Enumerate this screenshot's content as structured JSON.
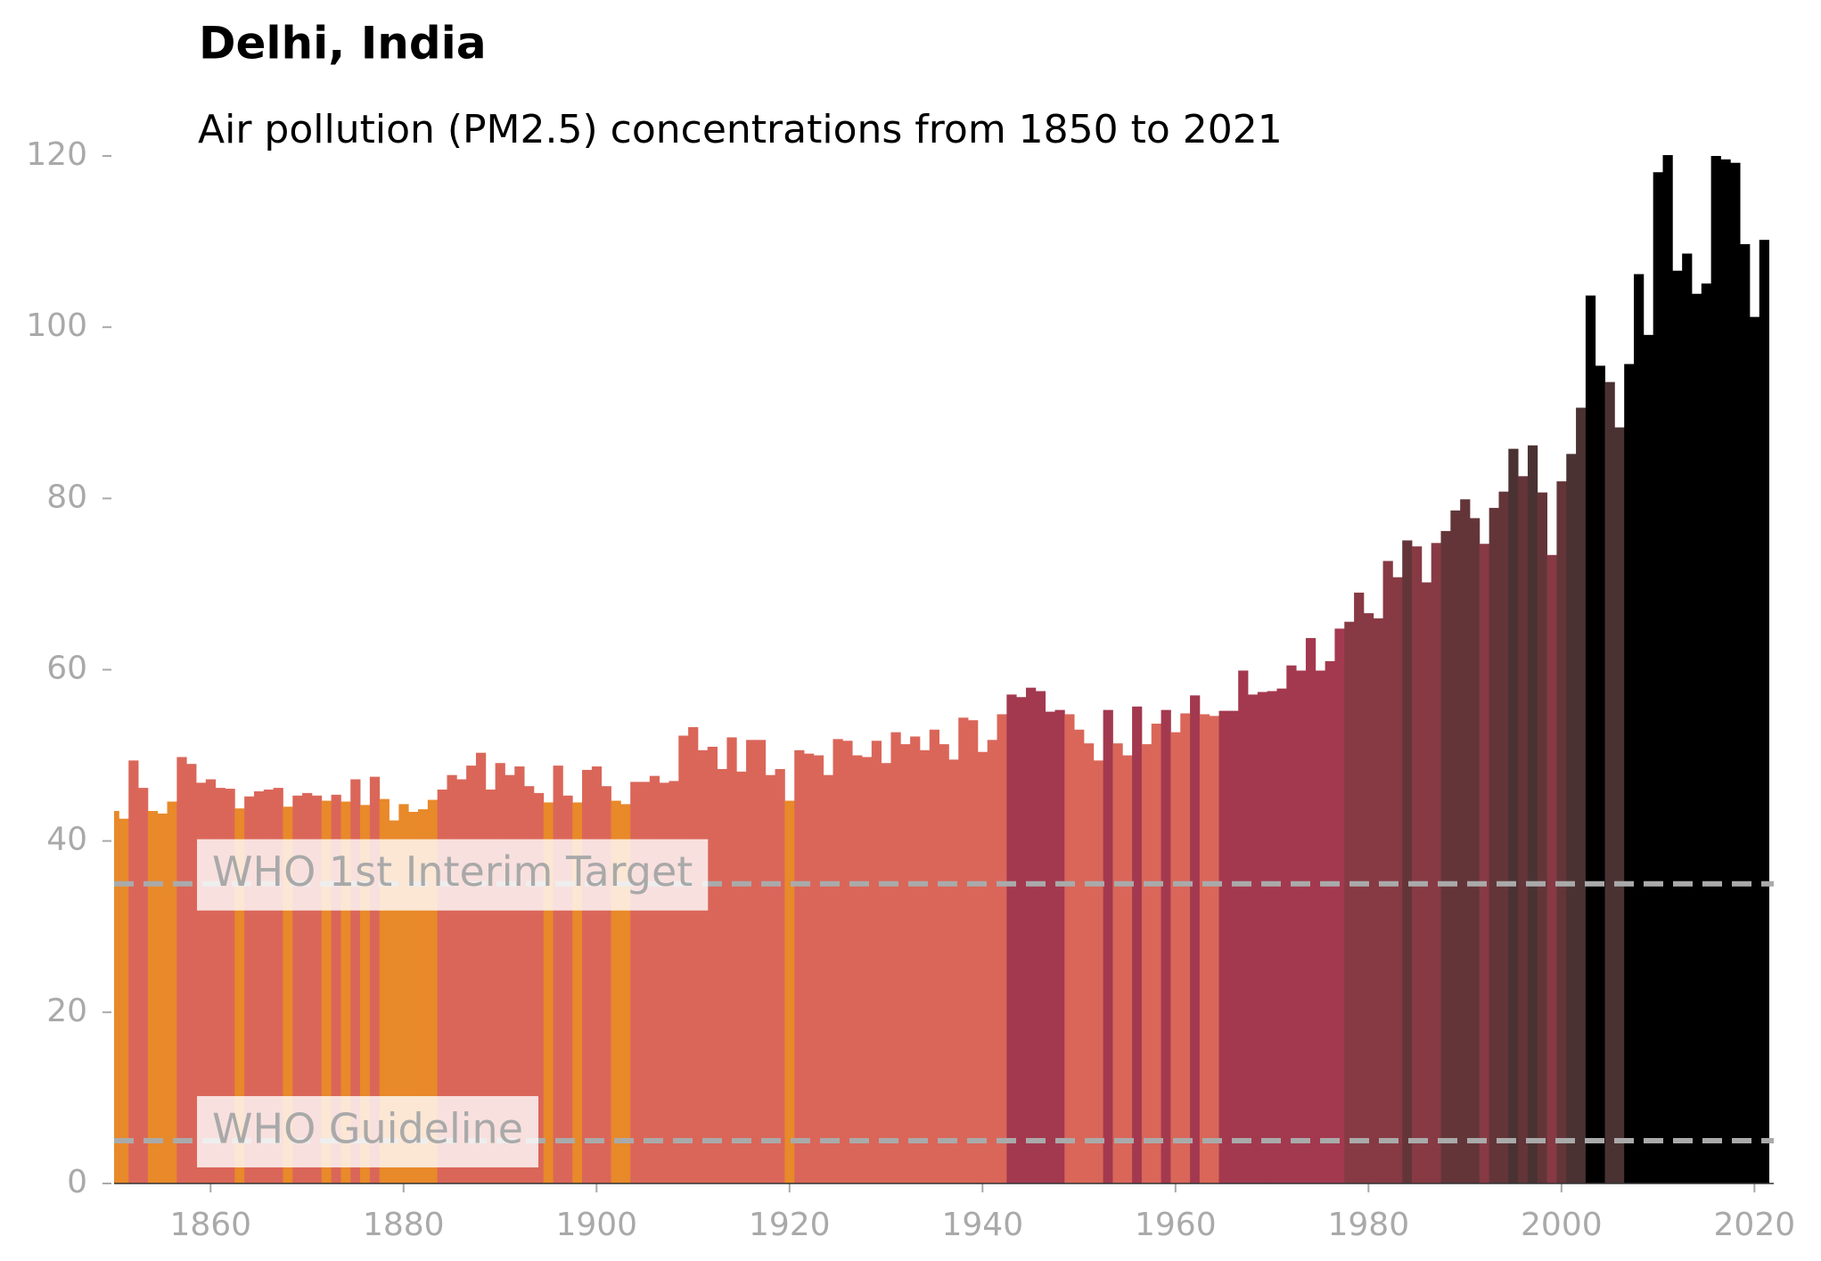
{
  "chart_data": {
    "type": "bar",
    "title": "Delhi, India",
    "subtitle": "Air pollution (PM2.5) concentrations from 1850 to 2021",
    "x": [
      1850,
      1851,
      1852,
      1853,
      1854,
      1855,
      1856,
      1857,
      1858,
      1859,
      1860,
      1861,
      1862,
      1863,
      1864,
      1865,
      1866,
      1867,
      1868,
      1869,
      1870,
      1871,
      1872,
      1873,
      1874,
      1875,
      1876,
      1877,
      1878,
      1879,
      1880,
      1881,
      1882,
      1883,
      1884,
      1885,
      1886,
      1887,
      1888,
      1889,
      1890,
      1891,
      1892,
      1893,
      1894,
      1895,
      1896,
      1897,
      1898,
      1899,
      1900,
      1901,
      1902,
      1903,
      1904,
      1905,
      1906,
      1907,
      1908,
      1909,
      1910,
      1911,
      1912,
      1913,
      1914,
      1915,
      1916,
      1917,
      1918,
      1919,
      1920,
      1921,
      1922,
      1923,
      1924,
      1925,
      1926,
      1927,
      1928,
      1929,
      1930,
      1931,
      1932,
      1933,
      1934,
      1935,
      1936,
      1937,
      1938,
      1939,
      1940,
      1941,
      1942,
      1943,
      1944,
      1945,
      1946,
      1947,
      1948,
      1949,
      1950,
      1951,
      1952,
      1953,
      1954,
      1955,
      1956,
      1957,
      1958,
      1959,
      1960,
      1961,
      1962,
      1963,
      1964,
      1965,
      1966,
      1967,
      1968,
      1969,
      1970,
      1971,
      1972,
      1973,
      1974,
      1975,
      1976,
      1977,
      1978,
      1979,
      1980,
      1981,
      1982,
      1983,
      1984,
      1985,
      1986,
      1987,
      1988,
      1989,
      1990,
      1991,
      1992,
      1993,
      1994,
      1995,
      1996,
      1997,
      1998,
      1999,
      2000,
      2001,
      2002,
      2003,
      2004,
      2005,
      2006,
      2007,
      2008,
      2009,
      2010,
      2011,
      2012,
      2013,
      2014,
      2015,
      2016,
      2017,
      2018,
      2019,
      2020,
      2021
    ],
    "values": [
      43.5,
      42.6,
      49.4,
      46.2,
      43.5,
      43.2,
      44.6,
      49.8,
      49,
      46.8,
      47.2,
      46.2,
      46.1,
      43.8,
      45.2,
      45.8,
      46,
      46.2,
      44,
      45.3,
      45.6,
      45.3,
      44.7,
      45.4,
      44.6,
      47.2,
      44.2,
      47.5,
      44.9,
      42.4,
      44.3,
      43.4,
      43.7,
      44.8,
      46,
      47.7,
      47.2,
      48.8,
      50.3,
      46,
      49.1,
      47.7,
      48.7,
      46.4,
      45.6,
      44.5,
      48.8,
      45.3,
      44.5,
      48.3,
      48.7,
      46.4,
      44.7,
      44.3,
      46.9,
      46.9,
      47.6,
      46.8,
      47,
      52.3,
      53.3,
      50.6,
      51,
      48.4,
      52.1,
      48.1,
      51.8,
      51.8,
      47.7,
      48.4,
      44.7,
      50.6,
      50.2,
      50,
      47.7,
      51.9,
      51.7,
      50,
      49.8,
      51.7,
      49.1,
      52.7,
      51.3,
      52.2,
      50.6,
      53,
      51.3,
      49.5,
      54.4,
      54.1,
      50.4,
      51.8,
      54.8,
      57.1,
      56.8,
      57.9,
      57.5,
      55.1,
      55.3,
      54.8,
      53,
      51.4,
      49.4,
      55.3,
      51.4,
      50,
      55.7,
      51.3,
      53.7,
      55.3,
      52.7,
      54.9,
      57,
      54.8,
      54.6,
      55.2,
      55.2,
      59.9,
      57.1,
      57.4,
      57.5,
      57.8,
      60.5,
      59.9,
      63.7,
      59.9,
      61,
      64.8,
      65.6,
      69,
      66.6,
      66,
      72.7,
      70.8,
      75.1,
      74.4,
      70.2,
      74.8,
      76.2,
      78.6,
      79.9,
      77.7,
      74.7,
      78.9,
      80.8,
      85.8,
      82.6,
      86.2,
      80.7,
      73.4,
      82,
      85.2,
      90.6,
      103.7,
      95.5,
      93.6,
      88.3,
      95.7,
      106.2,
      99.1,
      118.1,
      120.1,
      106.6,
      108.6,
      103.9,
      105.1,
      120,
      119.6,
      119.2,
      109.7,
      101.2,
      110.2
    ],
    "colors": [
      "#e8892a",
      "#e8892a",
      "#da6659",
      "#da6659",
      "#e8892a",
      "#e8892a",
      "#e8892a",
      "#da6659",
      "#da6659",
      "#da6659",
      "#da6659",
      "#da6659",
      "#da6659",
      "#e8892a",
      "#da6659",
      "#da6659",
      "#da6659",
      "#da6659",
      "#e8892a",
      "#da6659",
      "#da6659",
      "#da6659",
      "#e8892a",
      "#da6659",
      "#e8892a",
      "#da6659",
      "#e8892a",
      "#da6659",
      "#e8892a",
      "#e8892a",
      "#e8892a",
      "#e8892a",
      "#e8892a",
      "#e8892a",
      "#da6659",
      "#da6659",
      "#da6659",
      "#da6659",
      "#da6659",
      "#da6659",
      "#da6659",
      "#da6659",
      "#da6659",
      "#da6659",
      "#da6659",
      "#e8892a",
      "#da6659",
      "#da6659",
      "#e8892a",
      "#da6659",
      "#da6659",
      "#da6659",
      "#e8892a",
      "#e8892a",
      "#da6659",
      "#da6659",
      "#da6659",
      "#da6659",
      "#da6659",
      "#da6659",
      "#da6659",
      "#da6659",
      "#da6659",
      "#da6659",
      "#da6659",
      "#da6659",
      "#da6659",
      "#da6659",
      "#da6659",
      "#da6659",
      "#e8892a",
      "#da6659",
      "#da6659",
      "#da6659",
      "#da6659",
      "#da6659",
      "#da6659",
      "#da6659",
      "#da6659",
      "#da6659",
      "#da6659",
      "#da6659",
      "#da6659",
      "#da6659",
      "#da6659",
      "#da6659",
      "#da6659",
      "#da6659",
      "#da6659",
      "#da6659",
      "#da6659",
      "#da6659",
      "#da6659",
      "#a3394f",
      "#a3394f",
      "#a3394f",
      "#a3394f",
      "#a3394f",
      "#a3394f",
      "#da6659",
      "#da6659",
      "#da6659",
      "#da6659",
      "#a3394f",
      "#da6659",
      "#da6659",
      "#a3394f",
      "#da6659",
      "#da6659",
      "#a3394f",
      "#da6659",
      "#da6659",
      "#a3394f",
      "#da6659",
      "#da6659",
      "#a3394f",
      "#a3394f",
      "#a3394f",
      "#a3394f",
      "#a3394f",
      "#a3394f",
      "#a3394f",
      "#a3394f",
      "#a3394f",
      "#a3394f",
      "#a3394f",
      "#a3394f",
      "#a3394f",
      "#873a44",
      "#873a44",
      "#873a44",
      "#873a44",
      "#873a44",
      "#873a44",
      "#633539",
      "#873a44",
      "#873a44",
      "#873a44",
      "#633539",
      "#633539",
      "#633539",
      "#633539",
      "#873a44",
      "#633539",
      "#633539",
      "#4a3233",
      "#633539",
      "#4a3233",
      "#633539",
      "#873a44",
      "#633539",
      "#4a3233",
      "#4a3233",
      "#000000",
      "#000000",
      "#4a3233",
      "#4a3233",
      "#000000",
      "#000000",
      "#000000",
      "#000000",
      "#000000",
      "#000000",
      "#000000",
      "#000000",
      "#000000",
      "#000000",
      "#000000",
      "#000000",
      "#000000",
      "#000000",
      "#000000"
    ],
    "reference_lines": [
      {
        "value": 35,
        "label": "WHO 1st Interim Target"
      },
      {
        "value": 5,
        "label": "WHO Guideline"
      }
    ],
    "xlim": [
      1850,
      2022
    ],
    "xticks": [
      1860,
      1880,
      1900,
      1920,
      1940,
      1960,
      1980,
      2000,
      2020
    ],
    "ylim": [
      0,
      120
    ],
    "yticks": [
      0,
      20,
      40,
      60,
      80,
      100,
      120
    ]
  }
}
